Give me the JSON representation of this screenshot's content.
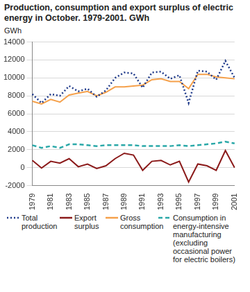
{
  "chart_data": {
    "type": "line",
    "title": "Production, consumption and export surplus of electric energy in October. 1979-2001. GWh",
    "y_label": "GWh",
    "categories": [
      "1979",
      null,
      "1981",
      null,
      "1983",
      null,
      "1985",
      null,
      "1987",
      null,
      "1989",
      null,
      "1991",
      null,
      "1993",
      null,
      "1995",
      null,
      "1997",
      null,
      "1999",
      null,
      "2001"
    ],
    "series": [
      {
        "name": "Total production",
        "color": "#1f3a8a",
        "line_style": "dotted",
        "values": [
          8200,
          7200,
          8200,
          8000,
          9100,
          8500,
          8800,
          7900,
          8600,
          10000,
          10600,
          10500,
          8900,
          10600,
          10700,
          9900,
          10300,
          7200,
          10800,
          10700,
          9800,
          11900,
          10000
        ]
      },
      {
        "name": "Export surplus",
        "color": "#8b1a1a",
        "line_style": "solid",
        "values": [
          800,
          -50,
          700,
          500,
          1000,
          100,
          400,
          -100,
          200,
          1000,
          1600,
          1400,
          -300,
          700,
          800,
          300,
          700,
          -1600,
          400,
          200,
          -300,
          1900,
          0
        ]
      },
      {
        "name": "Gross consumption",
        "color": "#f5a04a",
        "line_style": "solid",
        "values": [
          7400,
          7100,
          7600,
          7300,
          8100,
          8300,
          8500,
          8000,
          8400,
          9000,
          9000,
          9100,
          9200,
          9800,
          9900,
          9600,
          9600,
          8800,
          10400,
          10400,
          10100,
          10000,
          9900
        ]
      },
      {
        "name": "Consumption in energy-intensive manufacturing (excluding occasional power for electric boilers)",
        "color": "#2aa8a8",
        "line_style": "dashed",
        "values": [
          2500,
          2200,
          2400,
          2200,
          2600,
          2600,
          2500,
          2400,
          2500,
          2500,
          2500,
          2500,
          2400,
          2400,
          2400,
          2400,
          2500,
          2400,
          2500,
          2600,
          2700,
          2900,
          2700
        ]
      }
    ],
    "ylim": [
      -2000,
      14000
    ],
    "yticks": [
      -2000,
      0,
      2000,
      4000,
      6000,
      8000,
      10000,
      12000,
      14000
    ],
    "grid": true,
    "legend": "bottom"
  }
}
